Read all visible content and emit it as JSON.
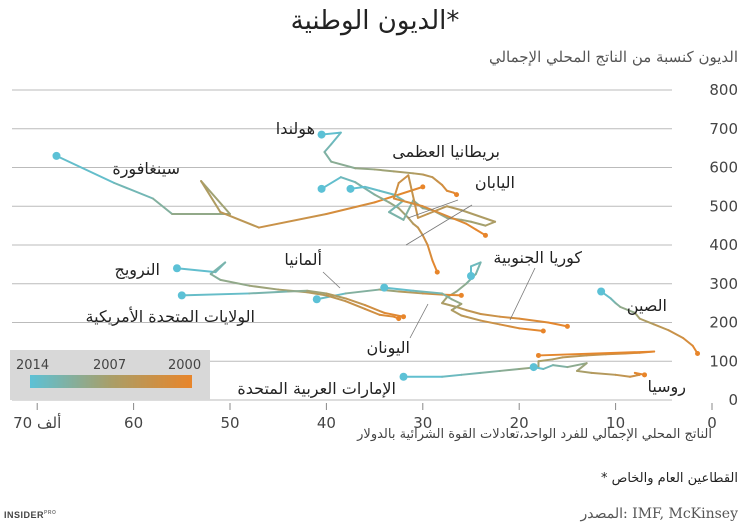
{
  "header": {
    "title": "الديون الوطنية*"
  },
  "footer": {
    "brand": "INSIDER",
    "brand_sup": "PRO",
    "note": "* القطاعين العام والخاص",
    "source": "المصدر: IMF, McKinsey"
  },
  "legend": {
    "start_year": "2014",
    "mid_year": "2007",
    "end_year": "2000"
  },
  "colors": {
    "grid": "#bbbbbb",
    "start": "#5cc1d6",
    "mid": "#a99e68",
    "end": "#e8852a"
  },
  "chart_data": {
    "type": "line",
    "ylabel": "الديون كنسبة من الناتج المحلي الإجمالي",
    "xlabel": "الناتج المحلي الإجمالي للفرد الواحد،تعادلات القوة الشرائية بالدولار",
    "xlim": [
      0,
      75
    ],
    "ylim": [
      0,
      800
    ],
    "x_reversed": true,
    "x_ticks": [
      "0",
      "10",
      "20",
      "30",
      "40",
      "50",
      "60",
      "ألف 70"
    ],
    "y_ticks": [
      "0",
      "100",
      "200",
      "300",
      "400",
      "500",
      "600",
      "700",
      "800"
    ],
    "series": [
      {
        "name": "هولندا",
        "points": [
          [
            40.5,
            685
          ],
          [
            38.5,
            690
          ],
          [
            39.5,
            660
          ],
          [
            40.2,
            640
          ],
          [
            39.5,
            615
          ],
          [
            37,
            598
          ],
          [
            35,
            595
          ],
          [
            33,
            590
          ],
          [
            31,
            585
          ],
          [
            30,
            582
          ],
          [
            29,
            575
          ],
          [
            28.5,
            565
          ],
          [
            28,
            555
          ],
          [
            27.5,
            540
          ],
          [
            26.8,
            535
          ],
          [
            26.5,
            530
          ]
        ]
      },
      {
        "name": "سينغافورة",
        "points": [
          [
            68,
            630
          ],
          [
            62,
            560
          ],
          [
            58,
            520
          ],
          [
            56,
            480
          ],
          [
            50,
            480
          ],
          [
            53,
            565
          ],
          [
            51,
            485
          ],
          [
            47,
            445
          ],
          [
            40,
            480
          ],
          [
            35,
            510
          ],
          [
            30,
            550
          ]
        ]
      },
      {
        "name": "بريطانيا العظمى",
        "points": [
          [
            40.5,
            545
          ],
          [
            38.5,
            575
          ],
          [
            37,
            562
          ],
          [
            35,
            530
          ],
          [
            33.5,
            510
          ],
          [
            32.5,
            495
          ],
          [
            31.5,
            470
          ],
          [
            31,
            455
          ],
          [
            30.5,
            445
          ],
          [
            30,
            425
          ],
          [
            29.5,
            400
          ],
          [
            29,
            360
          ],
          [
            28.5,
            330
          ]
        ]
      },
      {
        "name": "اليابان",
        "points": [
          [
            37.5,
            545
          ],
          [
            36,
            550
          ],
          [
            34.5,
            540
          ],
          [
            33,
            530
          ],
          [
            32,
            515
          ],
          [
            33.5,
            485
          ],
          [
            32,
            465
          ],
          [
            31,
            515
          ],
          [
            30,
            495
          ],
          [
            29,
            490
          ],
          [
            27.5,
            470
          ],
          [
            26,
            465
          ],
          [
            25,
            460
          ],
          [
            23.5,
            450
          ],
          [
            22.5,
            460
          ],
          [
            26,
            490
          ],
          [
            27.5,
            500
          ],
          [
            28.5,
            490
          ],
          [
            29.5,
            480
          ],
          [
            30.5,
            470
          ],
          [
            31.5,
            580
          ],
          [
            32.5,
            560
          ],
          [
            33,
            520
          ],
          [
            30,
            500
          ],
          [
            27,
            470
          ],
          [
            25.5,
            455
          ],
          [
            24.5,
            440
          ],
          [
            23.5,
            425
          ]
        ]
      },
      {
        "name": "كوريا الجنوبية",
        "points": [
          [
            25,
            320
          ],
          [
            25,
            345
          ],
          [
            24,
            355
          ],
          [
            24.5,
            325
          ],
          [
            25.5,
            300
          ],
          [
            26.5,
            280
          ],
          [
            27.5,
            265
          ],
          [
            28,
            250
          ],
          [
            26.5,
            240
          ],
          [
            25.5,
            232
          ],
          [
            24,
            222
          ],
          [
            22,
            215
          ],
          [
            20,
            210
          ],
          [
            17,
            200
          ],
          [
            15,
            190
          ]
        ]
      },
      {
        "name": "ألمانيا",
        "points": [
          [
            41,
            260
          ],
          [
            38,
            275
          ],
          [
            34.5,
            285
          ],
          [
            32.5,
            280
          ],
          [
            30,
            275
          ],
          [
            28,
            272
          ],
          [
            26,
            270
          ]
        ]
      },
      {
        "name": "اليونان",
        "points": [
          [
            34,
            290
          ],
          [
            31,
            282
          ],
          [
            28,
            275
          ],
          [
            27,
            260
          ],
          [
            26,
            248
          ],
          [
            27,
            232
          ],
          [
            26,
            218
          ],
          [
            24,
            205
          ],
          [
            22,
            195
          ],
          [
            20,
            185
          ],
          [
            17.5,
            178
          ]
        ]
      },
      {
        "name": "النرويج",
        "points": [
          [
            55.5,
            340
          ],
          [
            51.5,
            330
          ],
          [
            50.5,
            355
          ],
          [
            52,
            325
          ],
          [
            51,
            310
          ],
          [
            48,
            295
          ],
          [
            45,
            285
          ],
          [
            42,
            278
          ],
          [
            40,
            270
          ],
          [
            38,
            255
          ],
          [
            36,
            235
          ],
          [
            34.5,
            220
          ],
          [
            33,
            215
          ],
          [
            32.5,
            210
          ]
        ]
      },
      {
        "name": "الولايات المتحدة الأمريكية",
        "points": [
          [
            55,
            270
          ],
          [
            48,
            275
          ],
          [
            44,
            280
          ],
          [
            42,
            282
          ],
          [
            40,
            275
          ],
          [
            38,
            262
          ],
          [
            36,
            245
          ],
          [
            34,
            225
          ],
          [
            32,
            215
          ]
        ]
      },
      {
        "name": "الإمارات العربية المتحدة",
        "points": [
          [
            32,
            60
          ],
          [
            28,
            60
          ],
          [
            26,
            65
          ],
          [
            24,
            70
          ],
          [
            22,
            75
          ],
          [
            20,
            80
          ],
          [
            18,
            85
          ],
          [
            18,
            100
          ],
          [
            16.5,
            105
          ],
          [
            15.5,
            110
          ],
          [
            13,
            115
          ],
          [
            11,
            118
          ],
          [
            9,
            120
          ],
          [
            7.5,
            122
          ],
          [
            6,
            125
          ],
          [
            18,
            115
          ]
        ]
      },
      {
        "name": "روسيا",
        "points": [
          [
            18.5,
            85
          ],
          [
            17.5,
            80
          ],
          [
            16.5,
            90
          ],
          [
            15,
            85
          ],
          [
            13,
            95
          ],
          [
            14,
            75
          ],
          [
            12.5,
            70
          ],
          [
            10,
            65
          ],
          [
            8.5,
            60
          ],
          [
            7.5,
            65
          ],
          [
            8,
            70
          ],
          [
            7,
            65
          ]
        ]
      },
      {
        "name": "الصين",
        "points": [
          [
            11.5,
            280
          ],
          [
            10.5,
            262
          ],
          [
            10,
            250
          ],
          [
            9.5,
            240
          ],
          [
            8,
            225
          ],
          [
            7.5,
            210
          ],
          [
            6,
            195
          ],
          [
            4.5,
            180
          ],
          [
            3,
            160
          ],
          [
            2,
            140
          ],
          [
            1.5,
            120
          ]
        ]
      }
    ]
  }
}
